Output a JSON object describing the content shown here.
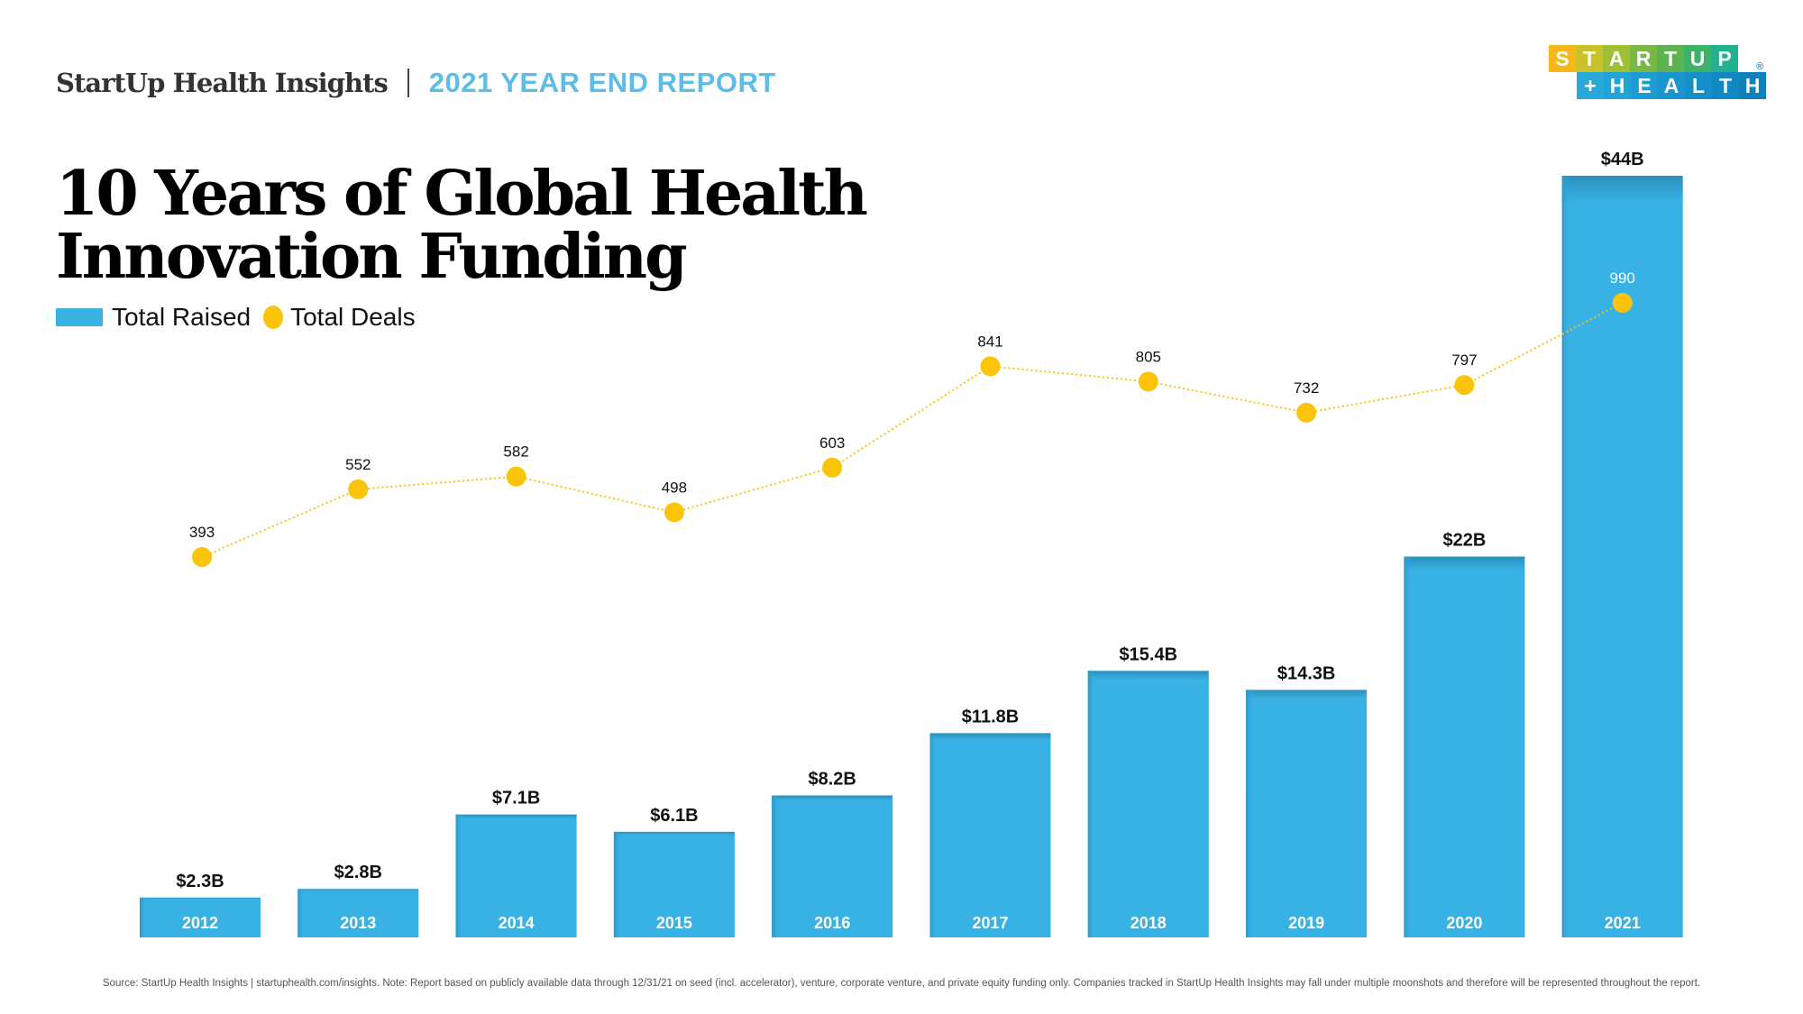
{
  "header": {
    "brand": "StartUp Health Insights",
    "report": "2021 YEAR END REPORT"
  },
  "logo": {
    "row1": [
      "S",
      "T",
      "A",
      "R",
      "T",
      "U",
      "P"
    ],
    "row2": [
      "+",
      "H",
      "E",
      "A",
      "L",
      "T",
      "H"
    ],
    "row1_colors": [
      "#f6b819",
      "#c9c22a",
      "#9fbf35",
      "#78b843",
      "#5cb350",
      "#3fb26a",
      "#22b08f"
    ],
    "row2_colors": [
      "#29a9d9",
      "#22a3d6",
      "#1c9cd2",
      "#1996cd",
      "#158fc8",
      "#1288c2",
      "#0f80bb"
    ],
    "registered": "®"
  },
  "title": {
    "line1": "10 Years of Global Health",
    "line2": "Innovation Funding"
  },
  "chart_data": {
    "type": "bar",
    "title": "10 Years of Global Health Innovation Funding",
    "categories": [
      "2012",
      "2013",
      "2014",
      "2015",
      "2016",
      "2017",
      "2018",
      "2019",
      "2020",
      "2021"
    ],
    "series": [
      {
        "name": "Total Raised",
        "type": "bar",
        "unit": "$B",
        "color": "#38b2e4",
        "values": [
          2.3,
          2.8,
          7.1,
          6.1,
          8.2,
          11.8,
          15.4,
          14.3,
          22,
          44
        ],
        "labels": [
          "$2.3B",
          "$2.8B",
          "$7.1B",
          "$6.1B",
          "$8.2B",
          "$11.8B",
          "$15.4B",
          "$14.3B",
          "$22B",
          "$44B"
        ]
      },
      {
        "name": "Total Deals",
        "type": "line",
        "style": "dotted line with circle markers",
        "color": "#fcc30b",
        "values": [
          393,
          552,
          582,
          498,
          603,
          841,
          805,
          732,
          797,
          990
        ],
        "labels": [
          "393",
          "552",
          "582",
          "498",
          "603",
          "841",
          "805",
          "732",
          "797",
          "990"
        ]
      }
    ],
    "xlabel": "",
    "ylabel": "",
    "grid": false,
    "axes_visible": false,
    "legend_position": "top-left"
  },
  "legend": {
    "items": [
      "Total Raised",
      "Total Deals"
    ]
  },
  "footer": {
    "text": "Source: StartUp Health Insights | startuphealth.com/insights. Note: Report based on publicly available data through 12/31/21 on seed (incl. accelerator), venture, corporate venture, and private equity funding only. Companies tracked in StartUp Health Insights may fall under multiple moonshots and therefore will be represented throughout the report."
  }
}
